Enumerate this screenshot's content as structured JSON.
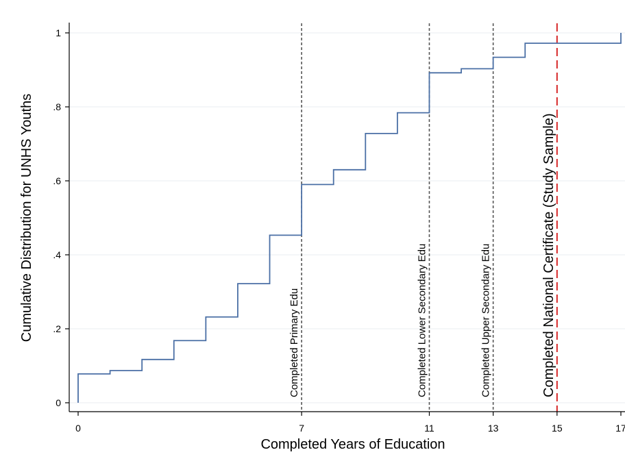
{
  "chart_data": {
    "type": "line",
    "subtype": "step-cdf",
    "xlabel": "Completed Years of Education",
    "ylabel": "Cumulative Distribution for UNHS Youths",
    "xlim": [
      0,
      17
    ],
    "ylim": [
      0,
      1
    ],
    "x_ticks": [
      0,
      7,
      11,
      13,
      15,
      17
    ],
    "x_tick_labels": [
      "0",
      "7",
      "11",
      "13",
      "15",
      "17"
    ],
    "y_ticks": [
      0,
      0.2,
      0.4,
      0.6,
      0.8,
      1
    ],
    "y_tick_labels": [
      "0",
      ".2",
      ".4",
      ".6",
      ".8",
      "1"
    ],
    "grid": "horizontal",
    "series": [
      {
        "color": "#4a6fa5",
        "x": [
          0,
          1,
          2,
          3,
          4,
          5,
          6,
          7,
          8,
          9,
          10,
          11,
          12,
          13,
          14,
          15,
          16,
          17
        ],
        "y": [
          0.078,
          0.087,
          0.117,
          0.168,
          0.232,
          0.322,
          0.453,
          0.59,
          0.63,
          0.728,
          0.784,
          0.892,
          0.903,
          0.934,
          0.972,
          0.972,
          0.972,
          1.0
        ]
      }
    ],
    "reference_lines": [
      {
        "x": 7,
        "label": "Completed Primary Edu",
        "color": "#555555",
        "style": "dotted"
      },
      {
        "x": 11,
        "label": "Completed Lower Secondary Edu",
        "color": "#555555",
        "style": "dotted"
      },
      {
        "x": 13,
        "label": "Completed Upper Secondary Edu",
        "color": "#555555",
        "style": "dotted"
      },
      {
        "x": 15,
        "label": "Completed National Certificate (Study Sample)",
        "color": "#d62728",
        "style": "dashed"
      }
    ]
  }
}
